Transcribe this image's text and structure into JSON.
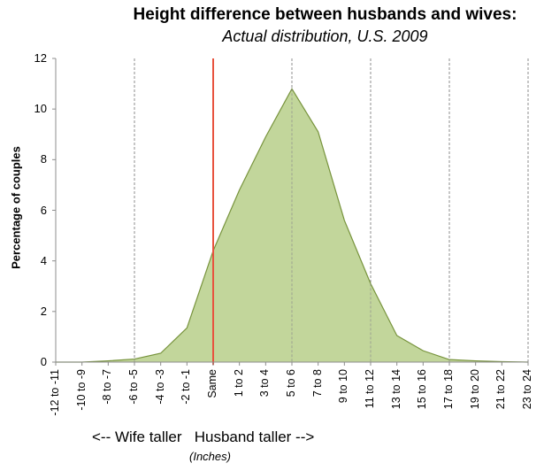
{
  "chart_data": {
    "type": "area",
    "title": "Height difference between husbands and wives:",
    "subtitle": "Actual distribution, U.S. 2009",
    "xlabel": "<-- Wife taller   Husband taller -->",
    "xlabel_units": "(Inches)",
    "ylabel": "Percentage of couples",
    "ylim": [
      0,
      12
    ],
    "yticks": [
      "0",
      "2",
      "4",
      "6",
      "8",
      "10",
      "12"
    ],
    "categories": [
      "-12 to -11",
      "-10 to -9",
      "-8 to -7",
      "-6 to -5",
      "-4 to -3",
      "-2 to -1",
      "Same",
      "1 to 2",
      "3 to 4",
      "5 to 6",
      "7 to 8",
      "9 to 10",
      "11 to 12",
      "13 to 14",
      "15 to 16",
      "17 to 18",
      "19 to 20",
      "21 to 22",
      "23 to 24"
    ],
    "series": [
      {
        "name": "Percentage of couples",
        "values": [
          0,
          0,
          0.05,
          0.12,
          0.35,
          1.35,
          4.4,
          6.8,
          8.9,
          10.8,
          9.1,
          5.6,
          3.1,
          1.05,
          0.45,
          0.1,
          0.05,
          0.02,
          0
        ]
      }
    ],
    "reference_line": {
      "category": "Same",
      "color": "#e8533f"
    },
    "dashed_gridlines_at": [
      "-6 to -5",
      "5 to 6",
      "11 to 12",
      "17 to 18",
      "23 to 24"
    ],
    "grid": "vertical dashed",
    "legend": "none",
    "colors": {
      "fill": "#c2d69b",
      "stroke": "#77933c",
      "reference": "#e8533f"
    }
  }
}
